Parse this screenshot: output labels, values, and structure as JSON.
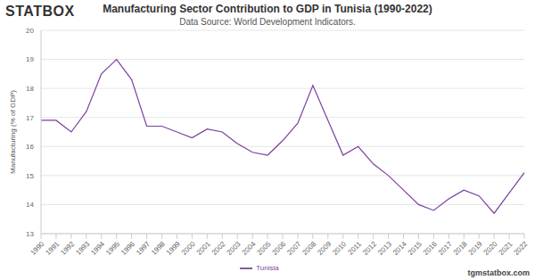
{
  "chart_data": {
    "type": "line",
    "title": "Manufacturing Sector Contribution to GDP in Tunisia (1990-2022)",
    "subtitle": "Data Source: World Development Indicators.",
    "logo": "STATBOX",
    "watermark": "tgmstatbox.com",
    "y_label": "Manufacturing (% of GDP)",
    "categories": [
      "1990",
      "1991",
      "1992",
      "1993",
      "1994",
      "1995",
      "1996",
      "1997",
      "1998",
      "1999",
      "2000",
      "2001",
      "2002",
      "2003",
      "2004",
      "2005",
      "2006",
      "2007",
      "2008",
      "2009",
      "2010",
      "2011",
      "2012",
      "2013",
      "2014",
      "2015",
      "2016",
      "2017",
      "2018",
      "2019",
      "2020",
      "2021",
      "2022"
    ],
    "series": [
      {
        "name": "Tunisia",
        "color": "#7b3f9e",
        "values": [
          16.9,
          16.9,
          16.5,
          17.2,
          18.5,
          19.0,
          18.3,
          16.7,
          16.7,
          16.5,
          16.3,
          16.6,
          16.5,
          16.1,
          15.8,
          15.7,
          16.2,
          16.8,
          18.1,
          16.9,
          15.7,
          16.0,
          15.4,
          15.0,
          14.5,
          14.0,
          13.8,
          14.2,
          14.5,
          14.3,
          13.7,
          14.4,
          15.1
        ]
      }
    ],
    "ylim": [
      13,
      20
    ],
    "yticks": [
      13,
      14,
      15,
      16,
      17,
      18,
      19,
      20
    ],
    "grid": true,
    "legend": "bottom",
    "marker": "none"
  }
}
